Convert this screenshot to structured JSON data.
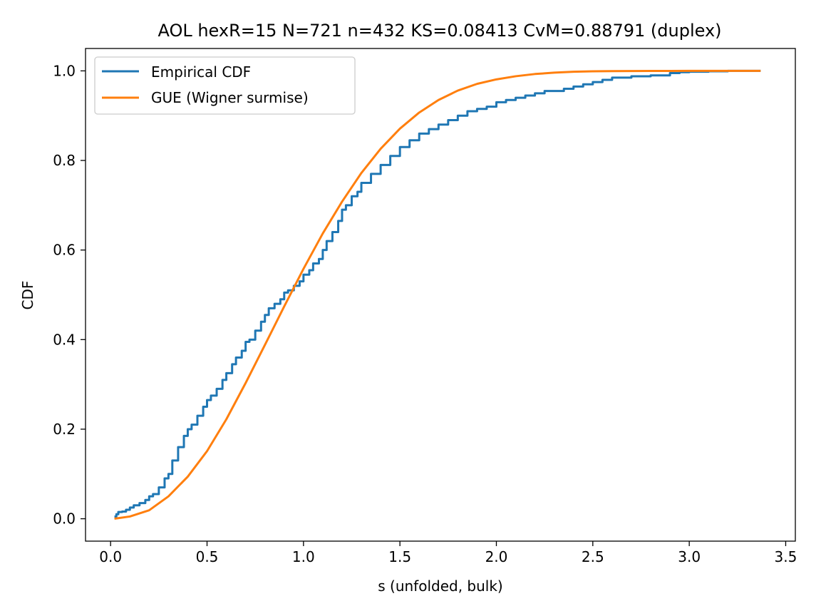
{
  "chart_data": {
    "type": "line",
    "title": "AOL hexR=15  N=721  n=432  KS=0.08413  CvM=0.88791  (duplex)",
    "xlabel": "s (unfolded, bulk)",
    "ylabel": "CDF",
    "xlim": [
      -0.13,
      3.55
    ],
    "ylim": [
      -0.05,
      1.05
    ],
    "xticks": [
      0.0,
      0.5,
      1.0,
      1.5,
      2.0,
      2.5,
      3.0,
      3.5
    ],
    "xtick_labels": [
      "0.0",
      "0.5",
      "1.0",
      "1.5",
      "2.0",
      "2.5",
      "3.0",
      "3.5"
    ],
    "yticks": [
      0.0,
      0.2,
      0.4,
      0.6,
      0.8,
      1.0
    ],
    "ytick_labels": [
      "0.0",
      "0.2",
      "0.4",
      "0.6",
      "0.8",
      "1.0"
    ],
    "grid": false,
    "legend_position": "top-left",
    "series": [
      {
        "name": "Empirical CDF",
        "color": "#1f77b4",
        "step": true,
        "x": [
          0.02,
          0.03,
          0.04,
          0.06,
          0.08,
          0.1,
          0.12,
          0.15,
          0.18,
          0.2,
          0.22,
          0.25,
          0.28,
          0.3,
          0.32,
          0.35,
          0.38,
          0.4,
          0.42,
          0.45,
          0.48,
          0.5,
          0.52,
          0.55,
          0.58,
          0.6,
          0.63,
          0.65,
          0.68,
          0.7,
          0.72,
          0.75,
          0.78,
          0.8,
          0.82,
          0.85,
          0.88,
          0.9,
          0.92,
          0.95,
          0.98,
          1.0,
          1.03,
          1.05,
          1.08,
          1.1,
          1.12,
          1.15,
          1.18,
          1.2,
          1.22,
          1.25,
          1.28,
          1.3,
          1.35,
          1.4,
          1.45,
          1.5,
          1.55,
          1.6,
          1.65,
          1.7,
          1.75,
          1.8,
          1.85,
          1.9,
          1.95,
          2.0,
          2.05,
          2.1,
          2.15,
          2.2,
          2.25,
          2.3,
          2.35,
          2.4,
          2.45,
          2.5,
          2.55,
          2.6,
          2.7,
          2.8,
          2.9,
          2.95,
          3.0,
          3.1,
          3.2,
          3.3,
          3.37
        ],
        "y": [
          0.005,
          0.01,
          0.015,
          0.016,
          0.02,
          0.025,
          0.03,
          0.035,
          0.042,
          0.05,
          0.055,
          0.07,
          0.09,
          0.1,
          0.13,
          0.16,
          0.185,
          0.2,
          0.21,
          0.23,
          0.25,
          0.265,
          0.275,
          0.29,
          0.31,
          0.325,
          0.345,
          0.36,
          0.375,
          0.395,
          0.4,
          0.42,
          0.44,
          0.455,
          0.47,
          0.48,
          0.49,
          0.505,
          0.51,
          0.52,
          0.53,
          0.545,
          0.555,
          0.57,
          0.58,
          0.6,
          0.62,
          0.64,
          0.665,
          0.69,
          0.7,
          0.72,
          0.73,
          0.75,
          0.77,
          0.79,
          0.81,
          0.83,
          0.845,
          0.86,
          0.87,
          0.88,
          0.89,
          0.9,
          0.91,
          0.915,
          0.92,
          0.93,
          0.935,
          0.94,
          0.945,
          0.95,
          0.955,
          0.955,
          0.96,
          0.965,
          0.97,
          0.975,
          0.98,
          0.985,
          0.988,
          0.99,
          0.995,
          0.997,
          0.998,
          0.999,
          1.0,
          1.0,
          1.0
        ]
      },
      {
        "name": "GUE (Wigner surmise)",
        "color": "#ff7f0e",
        "step": false,
        "x": [
          0.02,
          0.1,
          0.2,
          0.3,
          0.4,
          0.5,
          0.6,
          0.7,
          0.8,
          0.9,
          1.0,
          1.1,
          1.2,
          1.3,
          1.4,
          1.5,
          1.6,
          1.7,
          1.8,
          1.9,
          2.0,
          2.1,
          2.2,
          2.3,
          2.4,
          2.5,
          2.6,
          2.7,
          2.8,
          2.9,
          3.0,
          3.1,
          3.2,
          3.3,
          3.37
        ],
        "y": [
          0.0002,
          0.005,
          0.019,
          0.05,
          0.094,
          0.151,
          0.222,
          0.303,
          0.388,
          0.474,
          0.558,
          0.637,
          0.708,
          0.772,
          0.826,
          0.871,
          0.907,
          0.935,
          0.956,
          0.971,
          0.981,
          0.988,
          0.993,
          0.996,
          0.998,
          0.999,
          0.9994,
          0.9997,
          0.9998,
          0.9999,
          1.0,
          1.0,
          1.0,
          1.0,
          1.0
        ]
      }
    ]
  }
}
